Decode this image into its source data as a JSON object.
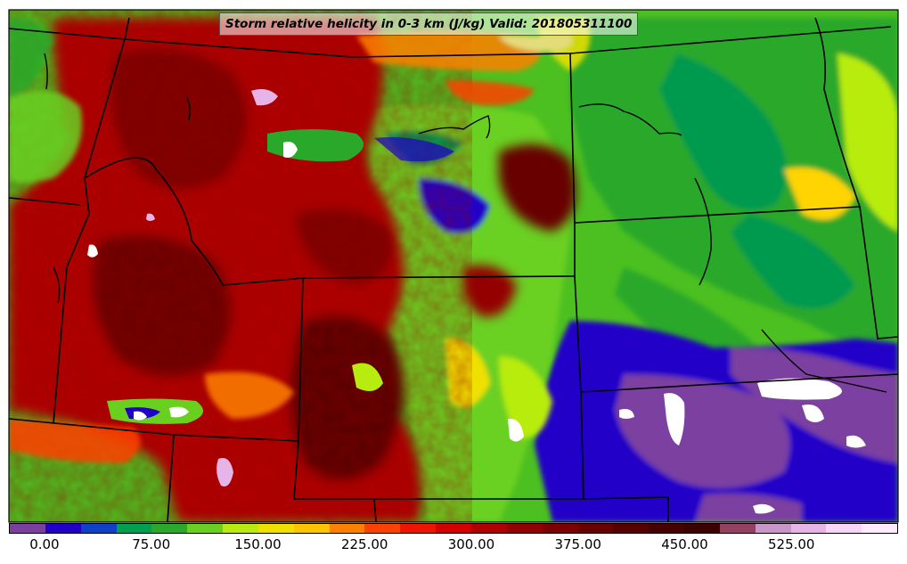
{
  "title": "Storm relative helicity in 0-3 km (J/kg) Valid: 201805311100",
  "colorbar": {
    "colors": [
      "#7b3fa0",
      "#2000c8",
      "#1040c8",
      "#00a050",
      "#2aa82a",
      "#6ad020",
      "#b8ec10",
      "#f0e000",
      "#ffc400",
      "#ff8000",
      "#ff4000",
      "#ee1400",
      "#d40000",
      "#b00000",
      "#940000",
      "#7c0000",
      "#680000",
      "#560000",
      "#460000",
      "#3c0000",
      "#944060",
      "#c896c8",
      "#e6b4e6",
      "#f8d4f8",
      "#ffeaff"
    ],
    "tick_labels": [
      "0.00",
      "75.00",
      "150.00",
      "225.00",
      "300.00",
      "375.00",
      "450.00",
      "525.00"
    ],
    "tick_values": [
      0,
      75,
      150,
      225,
      300,
      375,
      450,
      525
    ],
    "range": [
      -25,
      600
    ]
  }
}
